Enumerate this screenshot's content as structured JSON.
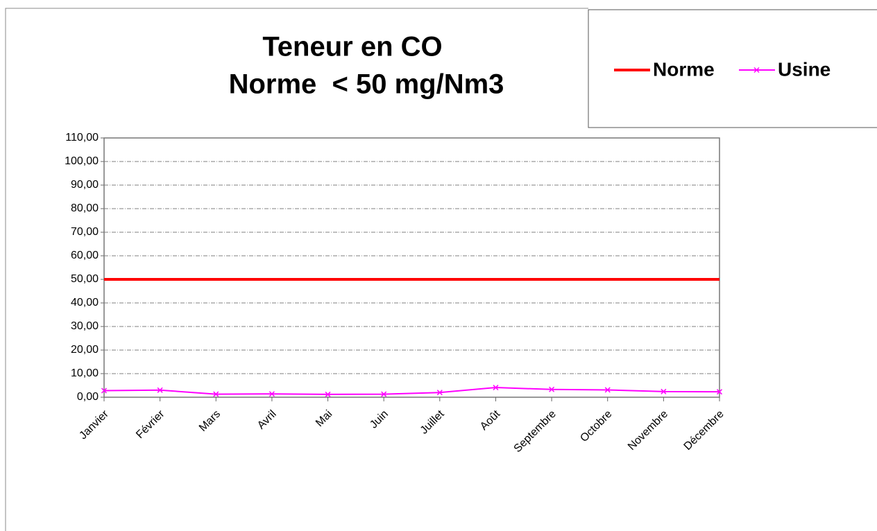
{
  "chart_data": {
    "type": "line",
    "title": "Teneur en CO",
    "subtitle": "Norme  < 50 mg/Nm3",
    "categories": [
      "Janvier",
      "Février",
      "Mars",
      "Avril",
      "Mai",
      "Juin",
      "Juillet",
      "Août",
      "Septembre",
      "Octobre",
      "Novembre",
      "Décembre"
    ],
    "series": [
      {
        "name": "Norme",
        "color": "#ff0000",
        "values": [
          50,
          50,
          50,
          50,
          50,
          50,
          50,
          50,
          50,
          50,
          50,
          50
        ]
      },
      {
        "name": "Usine",
        "color": "#ff00ff",
        "values": [
          2.8,
          3.0,
          1.3,
          1.4,
          1.2,
          1.3,
          2.0,
          4.1,
          3.3,
          3.1,
          2.4,
          2.3
        ]
      }
    ],
    "ylim": [
      0,
      110
    ],
    "yticks": [
      {
        "value": 0,
        "label": "0,00"
      },
      {
        "value": 10,
        "label": "10,00"
      },
      {
        "value": 20,
        "label": "20,00"
      },
      {
        "value": 30,
        "label": "30,00"
      },
      {
        "value": 40,
        "label": "40,00"
      },
      {
        "value": 50,
        "label": "50,00"
      },
      {
        "value": 60,
        "label": "60,00"
      },
      {
        "value": 70,
        "label": "70,00"
      },
      {
        "value": 80,
        "label": "80,00"
      },
      {
        "value": 90,
        "label": "90,00"
      },
      {
        "value": 100,
        "label": "100,00"
      },
      {
        "value": 110,
        "label": "110,00"
      }
    ],
    "grid": true,
    "legend": "top-right"
  }
}
